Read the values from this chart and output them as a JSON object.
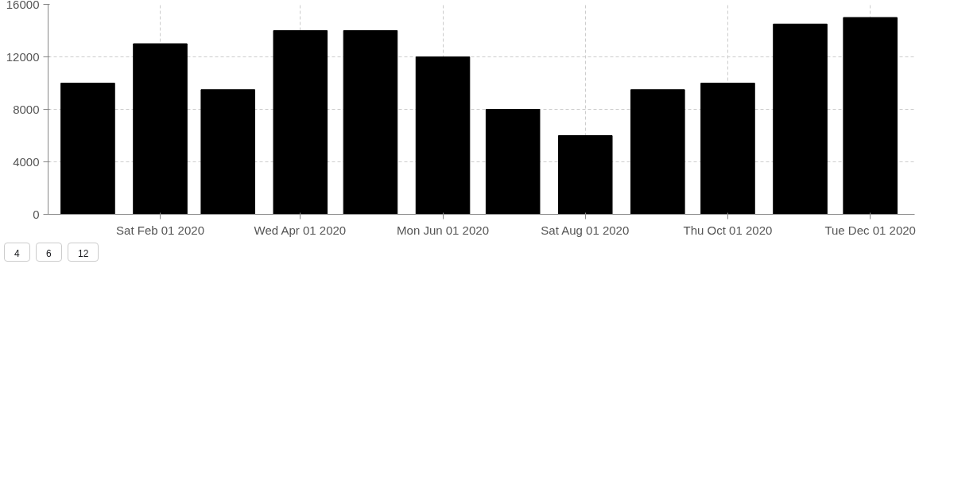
{
  "chart_data": {
    "type": "bar",
    "x": [
      "2020-01-01",
      "2020-02-01",
      "2020-03-01",
      "2020-04-01",
      "2020-05-01",
      "2020-06-01",
      "2020-07-01",
      "2020-08-01",
      "2020-09-01",
      "2020-10-01",
      "2020-11-01",
      "2020-12-01"
    ],
    "values": [
      10000,
      13000,
      9500,
      14000,
      14000,
      12000,
      8000,
      6000,
      9500,
      10000,
      14500,
      15000
    ],
    "color": "#000000",
    "xlim": [
      "2019-12-15",
      "2020-12-20"
    ],
    "xticks": [
      {
        "value": "2020-02-01",
        "label": "Sat Feb 01 2020"
      },
      {
        "value": "2020-04-01",
        "label": "Wed Apr 01 2020"
      },
      {
        "value": "2020-06-01",
        "label": "Mon Jun 01 2020"
      },
      {
        "value": "2020-08-01",
        "label": "Sat Aug 01 2020"
      },
      {
        "value": "2020-10-01",
        "label": "Thu Oct 01 2020"
      },
      {
        "value": "2020-12-01",
        "label": "Tue Dec 01 2020"
      }
    ],
    "ylim": [
      0,
      16000
    ],
    "yticks": [
      0,
      4000,
      8000,
      12000,
      16000
    ],
    "grid": true,
    "line_style": "dashed",
    "annotations": [
      "4",
      "6",
      "12"
    ]
  }
}
